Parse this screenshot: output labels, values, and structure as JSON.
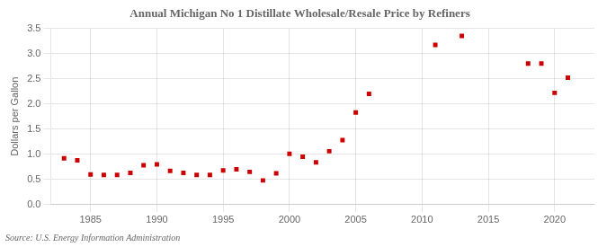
{
  "chart_data": {
    "type": "scatter",
    "title": "Annual Michigan No 1 Distillate Wholesale/Resale Price by Refiners",
    "ylabel": "Dollars per Gallon",
    "annotations": [
      "Source: U.S. Energy Information Administration"
    ],
    "x": [
      1983,
      1984,
      1985,
      1986,
      1987,
      1988,
      1989,
      1990,
      1991,
      1992,
      1993,
      1994,
      1995,
      1996,
      1997,
      1998,
      1999,
      2000,
      2001,
      2002,
      2003,
      2004,
      2005,
      2006,
      2011,
      2013,
      2018,
      2019,
      2020,
      2021
    ],
    "values": [
      0.92,
      0.88,
      0.6,
      0.59,
      0.59,
      0.63,
      0.78,
      0.8,
      0.67,
      0.63,
      0.59,
      0.59,
      0.68,
      0.7,
      0.65,
      0.48,
      0.62,
      1.01,
      0.95,
      0.84,
      1.06,
      1.28,
      1.83,
      2.2,
      3.17,
      3.35,
      2.8,
      2.8,
      2.22,
      2.52
    ],
    "color": "#cc0000",
    "marker": "square",
    "xlim": [
      1982,
      2023
    ],
    "xticks": [
      1985,
      1990,
      1995,
      2000,
      2005,
      2010,
      2015,
      2020
    ],
    "ylim": [
      0.0,
      3.5
    ],
    "yticks": [
      {
        "value": 0,
        "label": "0.0"
      },
      0.5,
      {
        "value": 1,
        "label": "1.0"
      },
      1.5,
      {
        "value": 2,
        "label": "2.0"
      },
      2.5,
      {
        "value": 3,
        "label": "3.0"
      },
      3.5
    ],
    "grid": true
  }
}
